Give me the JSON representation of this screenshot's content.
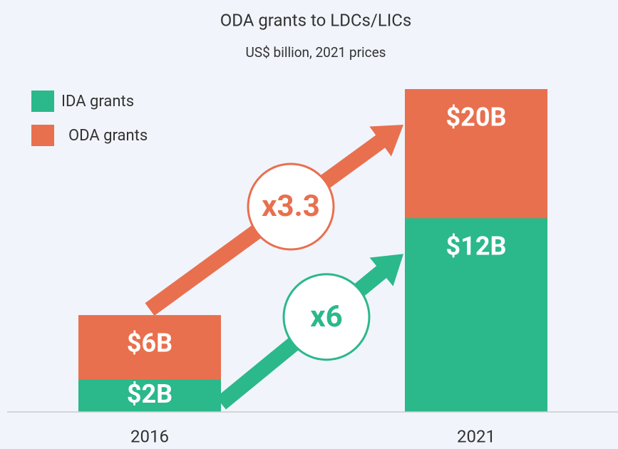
{
  "chart_data": {
    "type": "bar",
    "mode": "overlap",
    "title": "ODA grants to LDCs/LICs",
    "subtitle": "US$ billion, 2021 prices",
    "categories": [
      "2016",
      "2021"
    ],
    "series": [
      {
        "name": "IDA grants",
        "color": "#2bb88a",
        "values": [
          2,
          12
        ],
        "value_labels": [
          "$2B",
          "$12B"
        ]
      },
      {
        "name": "ODA grants",
        "color": "#e8704e",
        "values": [
          6,
          20
        ],
        "value_labels": [
          "$6B",
          "$20B"
        ]
      }
    ],
    "annotations": [
      "x6",
      "x3.3"
    ]
  }
}
